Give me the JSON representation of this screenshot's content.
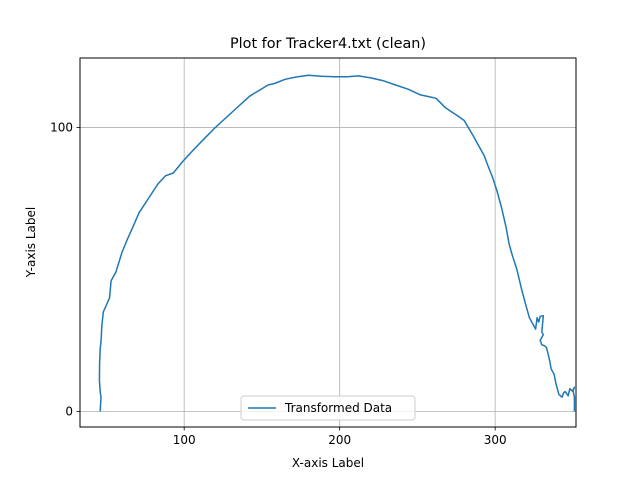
{
  "chart_data": {
    "type": "line",
    "title": "Plot for Tracker4.txt (clean)",
    "xlabel": "X-axis Label",
    "ylabel": "Y-axis Label",
    "xlim": [
      33,
      352
    ],
    "ylim": [
      -5.5,
      124.5
    ],
    "xticks": [
      100,
      200,
      300
    ],
    "yticks": [
      0,
      100
    ],
    "grid": true,
    "legend_position": "bottom-center",
    "colors": {
      "series": "#1f77b4",
      "grid": "#b0b0b0"
    },
    "series": [
      {
        "name": "Transformed Data",
        "x": [
          46,
          46.5,
          46,
          45.5,
          45.6,
          46,
          46.6,
          47,
          48,
          52,
          53,
          56,
          60,
          63,
          67,
          71,
          77,
          83,
          88,
          93,
          99,
          104,
          111,
          120,
          132,
          142,
          148,
          154,
          158,
          165,
          172,
          180,
          188,
          197,
          205,
          212,
          220,
          228,
          236,
          244,
          252,
          258,
          262,
          268,
          274,
          280,
          286,
          290,
          293,
          295,
          298,
          301,
          304,
          307,
          309,
          311,
          314,
          317,
          320,
          322,
          324,
          326,
          327,
          328,
          329,
          331,
          330,
          331,
          329,
          330,
          332,
          333,
          335,
          336,
          338,
          339,
          340,
          341,
          343,
          344,
          345,
          347,
          348,
          350,
          351,
          350,
          351,
          351
        ],
        "y": [
          0,
          5,
          7,
          11,
          17,
          22,
          25,
          30,
          35,
          40,
          46,
          49,
          56,
          60,
          65,
          70,
          75,
          80,
          83,
          84,
          88,
          91,
          95,
          100,
          106,
          111,
          113,
          115,
          115.5,
          117,
          117.8,
          118.4,
          118.1,
          117.9,
          117.9,
          118.2,
          117.5,
          116.5,
          115,
          113.5,
          111.5,
          110.8,
          110.3,
          107,
          104.8,
          102.5,
          97,
          93,
          90,
          87,
          83,
          78,
          72,
          65,
          59,
          55,
          50,
          43,
          37,
          33,
          31,
          29,
          33,
          31.5,
          33.5,
          33.7,
          28,
          27,
          25,
          23.5,
          23,
          22.5,
          18,
          15,
          13,
          10,
          8,
          6,
          5,
          6.5,
          7,
          5.5,
          8,
          7,
          8.5,
          7.5,
          5,
          0
        ]
      }
    ]
  }
}
